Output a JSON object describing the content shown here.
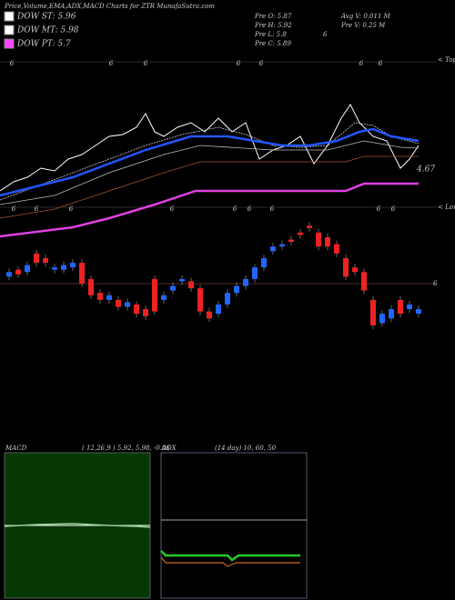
{
  "title": "Price,Volume,EMA,ADX,MACD Charts for ZTR MunafaSutra.com",
  "legend": [
    {
      "label": "DOW ST: 5.96",
      "color": "#ffffff"
    },
    {
      "label": "DOW MT: 5.98",
      "color": "#ffffff"
    },
    {
      "label": "DOW PT: 5.7",
      "color": "#ff44ff"
    }
  ],
  "info": [
    "Pre O: 5.87",
    "Pre H: 5.92",
    "Pre L: 5.8",
    "Pre C: 5.89",
    "6",
    "Avg V: 0.011 M",
    "Pre V: 0.25 M"
  ],
  "side_labels": {
    "tops": "< Tops",
    "lows": "< Lows",
    "price": "6",
    "ema": "4.67"
  },
  "peak_label": "6",
  "chart_data": {
    "type": "candlestick",
    "up_color": "#2266ff",
    "down_color": "#ee2222",
    "open": [
      6.03,
      6.06,
      6.05,
      6.13,
      6.11,
      6.06,
      6.06,
      6.07,
      6.09,
      6.02,
      5.96,
      5.93,
      5.93,
      5.9,
      5.91,
      5.89,
      6.02,
      5.93,
      5.97,
      6.01,
      6.01,
      5.98,
      5.88,
      5.87,
      5.91,
      5.96,
      5.99,
      6.02,
      6.07,
      6.14,
      6.16,
      6.19,
      6.22,
      6.25,
      6.22,
      6.2,
      6.17,
      6.11,
      6.07,
      6.05,
      5.93,
      5.83,
      5.85,
      5.93,
      5.89,
      5.87
    ],
    "close": [
      6.05,
      6.04,
      6.08,
      6.09,
      6.09,
      6.07,
      6.08,
      6.09,
      6.0,
      5.95,
      5.93,
      5.95,
      5.9,
      5.92,
      5.87,
      5.86,
      5.88,
      5.95,
      5.99,
      6.02,
      5.98,
      5.88,
      5.85,
      5.91,
      5.96,
      5.99,
      6.02,
      6.07,
      6.11,
      6.16,
      6.17,
      6.18,
      6.21,
      6.24,
      6.16,
      6.16,
      6.13,
      6.03,
      6.05,
      5.97,
      5.82,
      5.87,
      5.89,
      5.87,
      5.91,
      5.89
    ]
  },
  "macd": {
    "label": "MACD",
    "params": "( 12,26,9 ) 5.92, 5.98, -0.06"
  },
  "adx": {
    "label": "ADX",
    "params": "(14 day) 10, 60, 50"
  }
}
